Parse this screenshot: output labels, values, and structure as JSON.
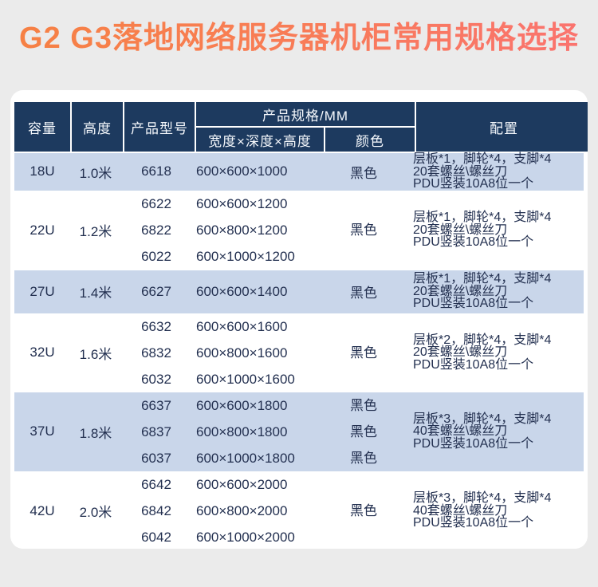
{
  "title": "G2 G3落地网络服务器机柜常用规格选择",
  "colors": {
    "page_bg": "#ebebeb",
    "card_bg": "#ffffff",
    "header_bg": "#1d3a5f",
    "row_alt_bg": "#c9d6ea",
    "title_gradient_start": "#f68143",
    "title_gradient_end": "#fa7370",
    "body_text": "#233050"
  },
  "table": {
    "headers": {
      "capacity": "容量",
      "height": "高度",
      "model": "产品型号",
      "spec_group": "产品规格/MM",
      "spec_size": "宽度×深度×高度",
      "spec_color": "颜色",
      "config": "配置"
    },
    "rows": [
      {
        "capacity": "18U",
        "height": "1.0米",
        "models": [
          "6618"
        ],
        "sizes": [
          "600×600×1000"
        ],
        "colors": [
          "黑色"
        ],
        "config": [
          "层板*1，脚轮*4，支脚*4",
          "20套螺丝\\螺丝刀",
          "PDU竖装10A8位一个"
        ]
      },
      {
        "capacity": "22U",
        "height": "1.2米",
        "models": [
          "6622",
          "6822",
          "6022"
        ],
        "sizes": [
          "600×600×1200",
          "600×800×1200",
          "600×1000×1200"
        ],
        "colors": [
          "黑色"
        ],
        "config": [
          "层板*1，脚轮*4，支脚*4",
          "20套螺丝\\螺丝刀",
          "PDU竖装10A8位一个"
        ]
      },
      {
        "capacity": "27U",
        "height": "1.4米",
        "models": [
          "6627"
        ],
        "sizes": [
          "600×600×1400"
        ],
        "colors": [
          "黑色"
        ],
        "config": [
          "层板*1，脚轮*4，支脚*4",
          "20套螺丝\\螺丝刀",
          "PDU竖装10A8位一个"
        ]
      },
      {
        "capacity": "32U",
        "height": "1.6米",
        "models": [
          "6632",
          "6832",
          "6032"
        ],
        "sizes": [
          "600×600×1600",
          "600×800×1600",
          "600×1000×1600"
        ],
        "colors": [
          "黑色"
        ],
        "config": [
          "层板*2，脚轮*4，支脚*4",
          "20套螺丝\\螺丝刀",
          "PDU竖装10A8位一个"
        ]
      },
      {
        "capacity": "37U",
        "height": "1.8米",
        "models": [
          "6637",
          "6837",
          "6037"
        ],
        "sizes": [
          "600×600×1800",
          "600×800×1800",
          "600×1000×1800"
        ],
        "colors": [
          "黑色",
          "黑色",
          "黑色"
        ],
        "config": [
          "层板*3，脚轮*4，支脚*4",
          "40套螺丝\\螺丝刀",
          "PDU竖装10A8位一个"
        ]
      },
      {
        "capacity": "42U",
        "height": "2.0米",
        "models": [
          "6642",
          "6842",
          "6042"
        ],
        "sizes": [
          "600×600×2000",
          "600×800×2000",
          "600×1000×2000"
        ],
        "colors": [
          "黑色"
        ],
        "config": [
          "层板*3，脚轮*4，支脚*4",
          "40套螺丝\\螺丝刀",
          "PDU竖装10A8位一个"
        ]
      }
    ]
  }
}
